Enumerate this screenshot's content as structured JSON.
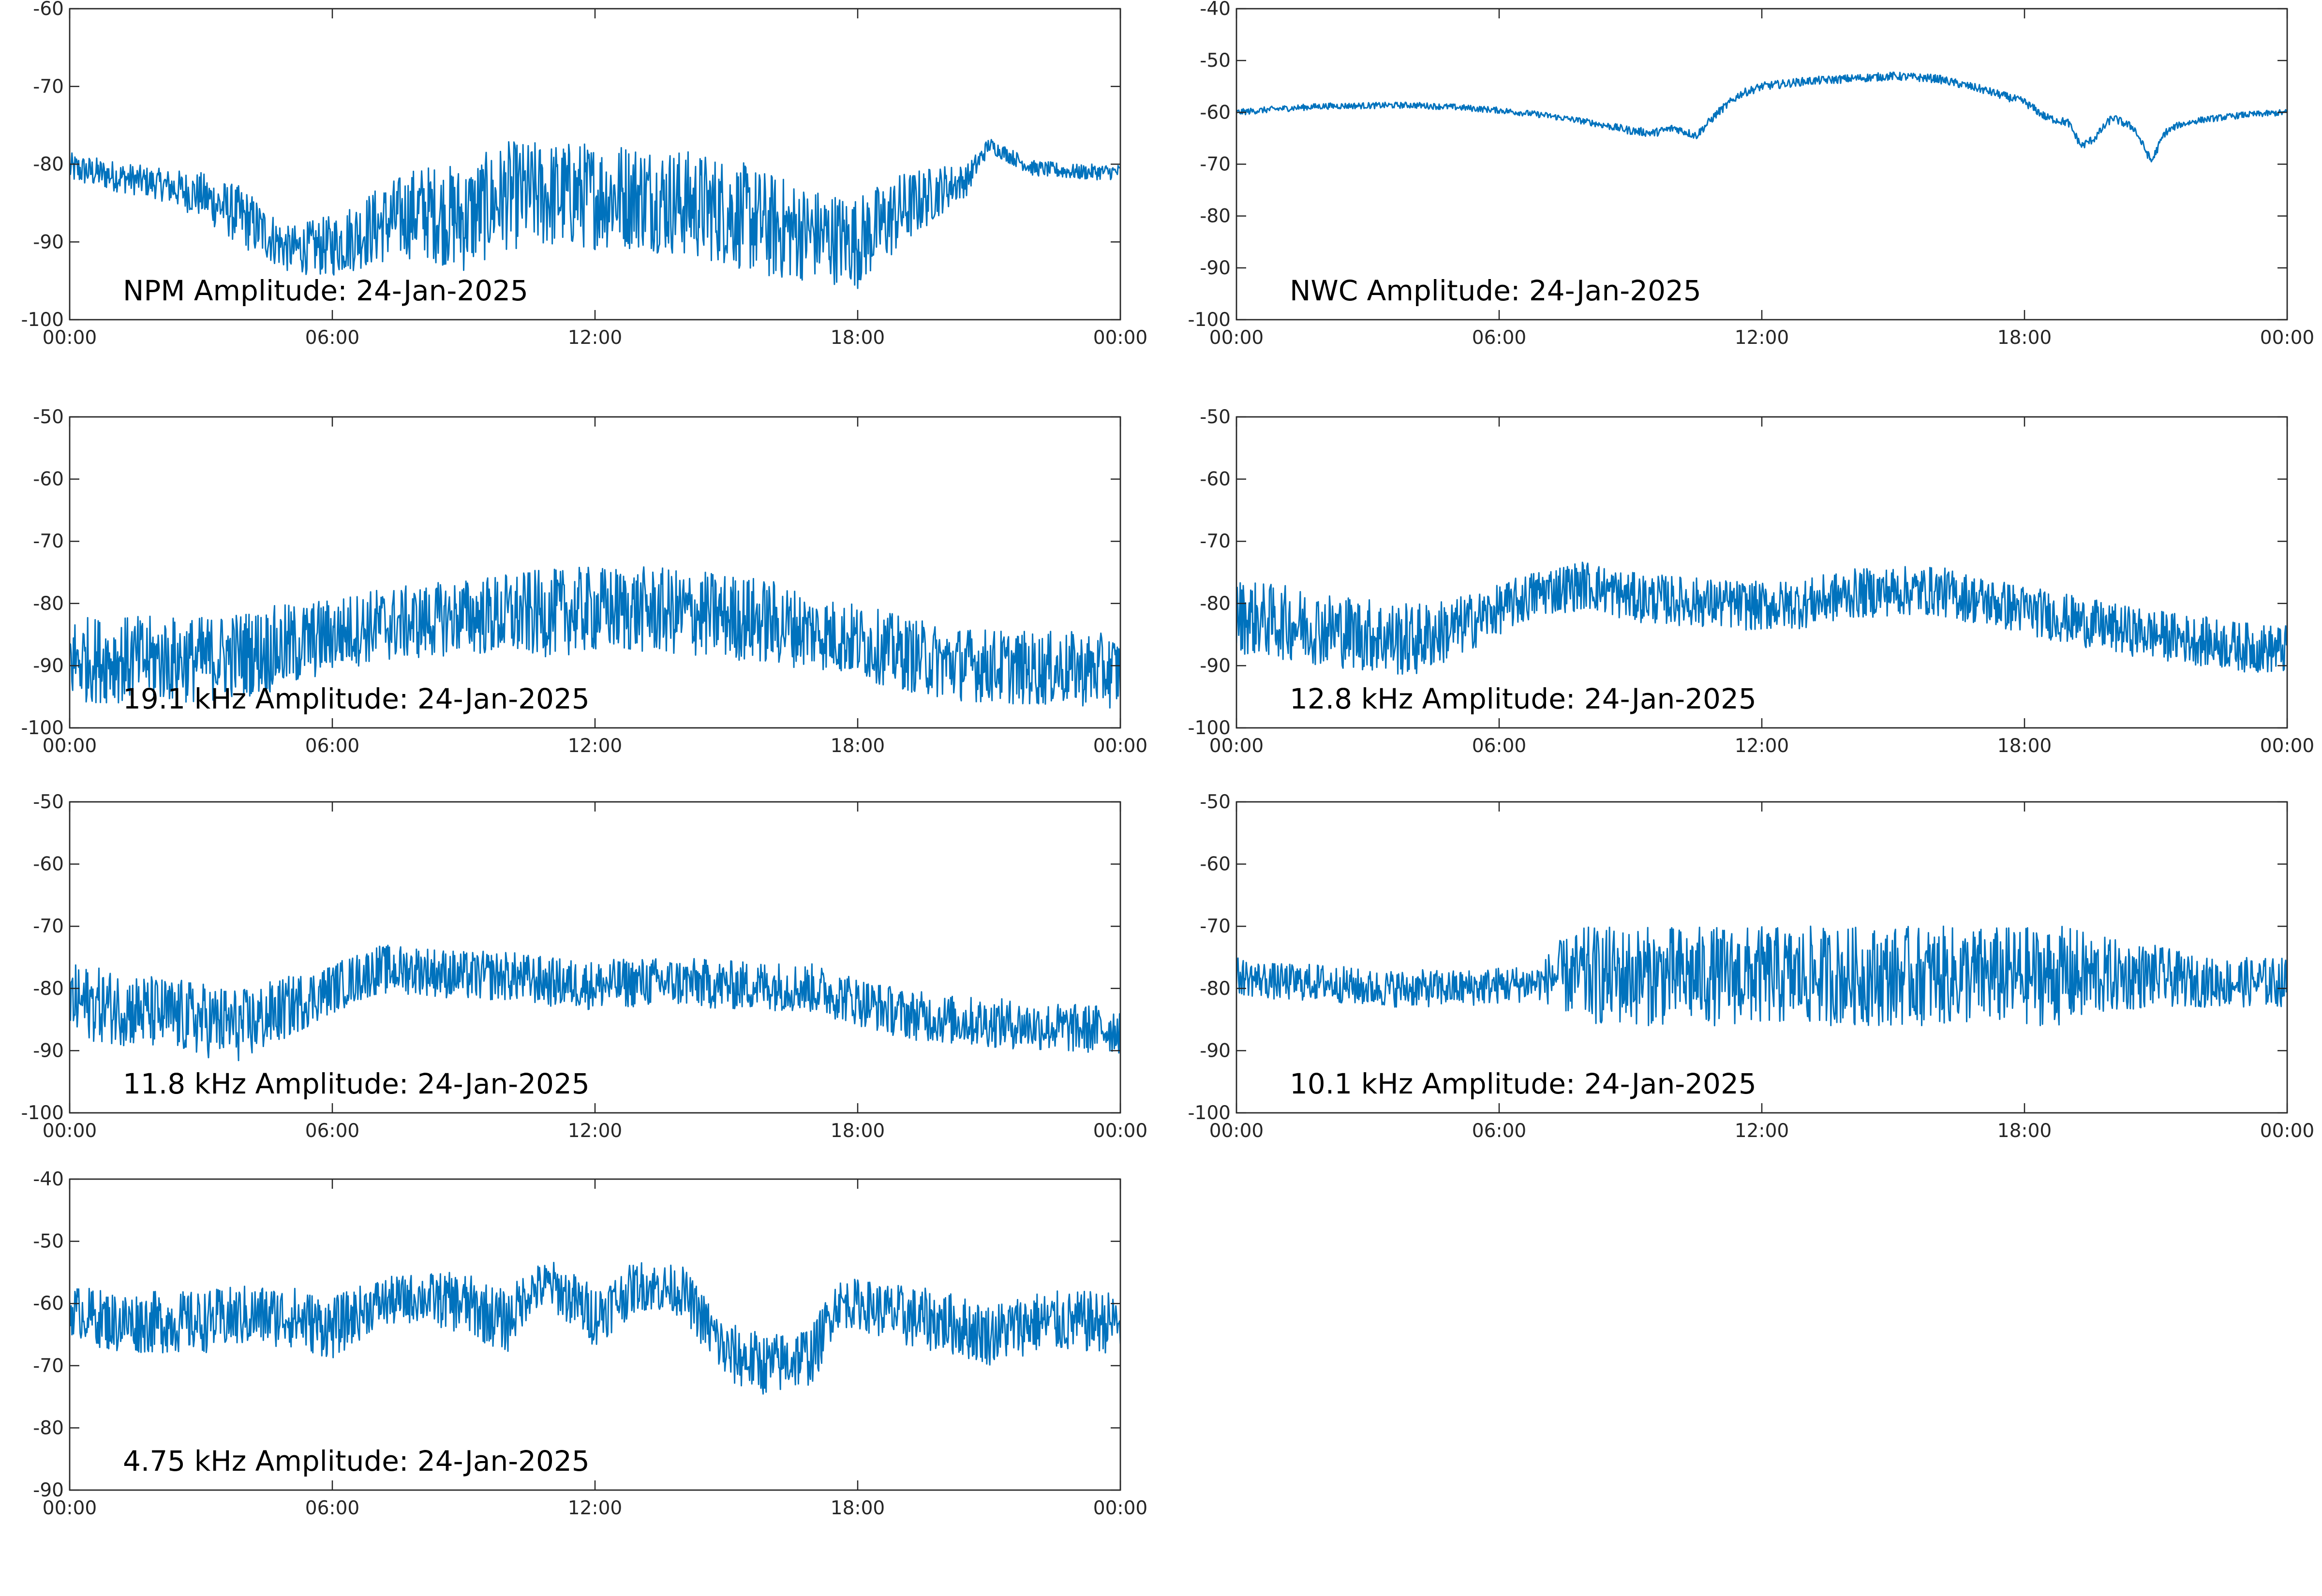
{
  "figure": {
    "date": "24-Jan-2025",
    "series_color": "#0072bd"
  },
  "chart_data": [
    {
      "type": "line",
      "title": "NPM Amplitude: 24-Jan-2025",
      "xlabel": "",
      "ylabel": "",
      "xlim": [
        0,
        24
      ],
      "ylim": [
        -100,
        -60
      ],
      "yticks": [
        -100,
        -90,
        -80,
        -70,
        -60
      ],
      "xticks": [
        0,
        6,
        12,
        18,
        24
      ],
      "xtick_labels": [
        "00:00",
        "06:00",
        "12:00",
        "18:00",
        "00:00"
      ],
      "grid": false,
      "series": [
        {
          "x": [
            0,
            1,
            2,
            3,
            4,
            5,
            6,
            7,
            8,
            9,
            10,
            11,
            12,
            13,
            14,
            15,
            16,
            17,
            18,
            19,
            20,
            20.5,
            21,
            22,
            23,
            24
          ],
          "y": [
            -80.5,
            -81.5,
            -82.5,
            -84,
            -87,
            -91,
            -90.5,
            -88,
            -86,
            -87,
            -84,
            -84,
            -84,
            -84,
            -85,
            -86,
            -88,
            -89,
            -90,
            -86,
            -83,
            -82,
            -77.5,
            -80.5,
            -81,
            -81
          ],
          "spread": [
            2,
            2,
            2,
            3,
            4,
            3,
            4,
            5,
            6,
            7,
            7,
            7,
            7,
            7,
            7,
            7,
            7,
            6,
            6,
            5,
            3,
            2,
            1,
            1,
            1,
            1
          ]
        }
      ]
    },
    {
      "type": "line",
      "title": "NWC Amplitude: 24-Jan-2025",
      "xlabel": "",
      "ylabel": "",
      "xlim": [
        0,
        24
      ],
      "ylim": [
        -100,
        -40
      ],
      "yticks": [
        -100,
        -90,
        -80,
        -70,
        -60,
        -50,
        -40
      ],
      "xticks": [
        0,
        6,
        12,
        18,
        24
      ],
      "xtick_labels": [
        "00:00",
        "06:00",
        "12:00",
        "18:00",
        "00:00"
      ],
      "grid": false,
      "series": [
        {
          "x": [
            0,
            1,
            2,
            3,
            4,
            5,
            6,
            7,
            8,
            9,
            9.5,
            10,
            10.5,
            11,
            11.5,
            12,
            13,
            14,
            15,
            16,
            17,
            18,
            18.5,
            19,
            19.3,
            19.6,
            20,
            20.5,
            20.9,
            21.2,
            21.5,
            22,
            23,
            24
          ],
          "y": [
            -60,
            -59.3,
            -58.8,
            -58.7,
            -58.6,
            -59,
            -59.6,
            -60.5,
            -61.8,
            -63.5,
            -64,
            -63,
            -64.5,
            -60,
            -56.5,
            -55,
            -54,
            -53.5,
            -53,
            -53.5,
            -55.5,
            -58,
            -61,
            -62,
            -66.5,
            -65,
            -61,
            -63,
            -69.5,
            -64,
            -62.5,
            -61.5,
            -60.5,
            -60
          ],
          "spread": [
            0.6,
            0.6,
            0.6,
            0.6,
            0.6,
            0.6,
            0.6,
            0.6,
            0.6,
            0.8,
            0.8,
            0.8,
            0.8,
            0.8,
            0.8,
            0.8,
            0.8,
            0.8,
            0.8,
            0.8,
            0.8,
            0.8,
            0.8,
            0.8,
            0.8,
            0.8,
            0.8,
            0.8,
            0.8,
            0.8,
            0.6,
            0.6,
            0.6,
            0.6
          ]
        }
      ]
    },
    {
      "type": "line",
      "title": "19.1 kHz Amplitude: 24-Jan-2025",
      "xlabel": "",
      "ylabel": "",
      "xlim": [
        0,
        24
      ],
      "ylim": [
        -100,
        -50
      ],
      "yticks": [
        -100,
        -90,
        -80,
        -70,
        -60,
        -50
      ],
      "xticks": [
        0,
        6,
        12,
        18,
        24
      ],
      "xtick_labels": [
        "00:00",
        "06:00",
        "12:00",
        "18:00",
        "00:00"
      ],
      "grid": false,
      "series": [
        {
          "x": [
            0,
            1,
            2,
            3,
            4,
            5,
            6,
            7,
            8,
            9,
            10,
            11,
            12,
            13,
            14,
            15,
            16,
            17,
            18,
            19,
            20,
            21,
            22,
            23,
            24
          ],
          "y": [
            -89,
            -89,
            -89,
            -89,
            -88,
            -87,
            -85,
            -83.5,
            -83,
            -82,
            -82,
            -81.5,
            -81,
            -81,
            -81.5,
            -82,
            -83,
            -84.5,
            -86,
            -88,
            -89.5,
            -90,
            -90.5,
            -90.5,
            -91
          ],
          "spread": [
            7,
            7,
            7,
            7,
            7,
            7,
            6,
            6,
            6,
            6,
            7,
            7,
            7,
            7,
            7,
            7,
            7,
            6,
            6,
            6,
            6,
            6,
            6,
            6,
            6
          ]
        }
      ]
    },
    {
      "type": "line",
      "title": "12.8 kHz Amplitude: 24-Jan-2025",
      "xlabel": "",
      "ylabel": "",
      "xlim": [
        0,
        24
      ],
      "ylim": [
        -100,
        -50
      ],
      "yticks": [
        -100,
        -90,
        -80,
        -70,
        -60,
        -50
      ],
      "xticks": [
        0,
        6,
        12,
        18,
        24
      ],
      "xtick_labels": [
        "00:00",
        "06:00",
        "12:00",
        "18:00",
        "00:00"
      ],
      "grid": false,
      "series": [
        {
          "x": [
            0,
            1,
            2,
            3,
            4,
            5,
            6,
            7,
            8,
            9,
            10,
            11,
            12,
            13,
            14,
            15,
            16,
            17,
            18,
            19,
            20,
            21,
            22,
            23,
            24
          ],
          "y": [
            -82,
            -83,
            -84,
            -85,
            -86,
            -84,
            -81,
            -78,
            -77,
            -79,
            -79.5,
            -80,
            -80.5,
            -80,
            -78.5,
            -78,
            -78,
            -79.5,
            -81,
            -82.5,
            -84,
            -85,
            -86,
            -87,
            -87.5
          ],
          "spread": [
            6,
            6,
            6,
            6,
            6,
            5,
            4,
            4,
            4,
            4,
            4,
            4,
            4,
            4,
            4,
            4,
            4,
            4,
            4,
            4,
            4,
            4,
            4,
            4,
            4
          ]
        }
      ]
    },
    {
      "type": "line",
      "title": "11.8 kHz Amplitude: 24-Jan-2025",
      "xlabel": "",
      "ylabel": "",
      "xlim": [
        0,
        24
      ],
      "ylim": [
        -100,
        -50
      ],
      "yticks": [
        -100,
        -90,
        -80,
        -70,
        -60,
        -50
      ],
      "xticks": [
        0,
        6,
        12,
        18,
        24
      ],
      "xtick_labels": [
        "00:00",
        "06:00",
        "12:00",
        "18:00",
        "00:00"
      ],
      "grid": false,
      "series": [
        {
          "x": [
            0,
            1,
            2,
            3,
            4,
            5,
            6,
            7,
            8,
            9,
            10,
            11,
            12,
            13,
            14,
            15,
            16,
            17,
            18,
            19,
            20,
            21,
            22,
            23,
            24
          ],
          "y": [
            -82,
            -83,
            -84,
            -85,
            -86,
            -83,
            -80,
            -77,
            -77,
            -78,
            -78,
            -79,
            -79.5,
            -79,
            -79,
            -79.5,
            -79.5,
            -80,
            -82,
            -84,
            -85,
            -85.5,
            -86,
            -86.5,
            -86.5
          ],
          "spread": [
            6,
            6,
            6,
            6,
            6,
            5,
            4,
            4,
            4,
            4,
            4,
            4,
            4,
            4,
            4,
            4,
            4,
            4,
            4,
            4,
            4,
            4,
            4,
            4,
            4
          ]
        }
      ]
    },
    {
      "type": "line",
      "title": "10.1 kHz Amplitude: 24-Jan-2025",
      "xlabel": "",
      "ylabel": "",
      "xlim": [
        0,
        24
      ],
      "ylim": [
        -100,
        -50
      ],
      "yticks": [
        -100,
        -90,
        -80,
        -70,
        -60,
        -50
      ],
      "xticks": [
        0,
        6,
        12,
        18,
        24
      ],
      "xtick_labels": [
        "00:00",
        "06:00",
        "12:00",
        "18:00",
        "00:00"
      ],
      "grid": false,
      "series": [
        {
          "x": [
            0,
            1,
            2,
            3,
            4,
            5,
            6,
            7,
            7.2,
            8,
            9,
            10,
            11,
            12,
            13,
            14,
            15,
            16,
            17,
            18,
            19,
            20,
            21,
            22,
            23,
            24
          ],
          "y": [
            -78,
            -79,
            -79,
            -80,
            -80,
            -80,
            -79.5,
            -79,
            -78,
            -78,
            -78,
            -78,
            -78,
            -78,
            -78,
            -78,
            -78,
            -78,
            -78,
            -78,
            -78,
            -78,
            -78,
            -79,
            -79,
            -79
          ],
          "spread": [
            3,
            3,
            3,
            3,
            3,
            3,
            3,
            3,
            5,
            8,
            8,
            8,
            8,
            8,
            8,
            8,
            8,
            8,
            8,
            8,
            8,
            6,
            5,
            4,
            4,
            4
          ]
        }
      ]
    },
    {
      "type": "line",
      "title": "4.75 kHz Amplitude: 24-Jan-2025",
      "xlabel": "",
      "ylabel": "",
      "xlim": [
        0,
        24
      ],
      "ylim": [
        -90,
        -40
      ],
      "yticks": [
        -90,
        -80,
        -70,
        -60,
        -50,
        -40
      ],
      "xticks": [
        0,
        6,
        12,
        18,
        24
      ],
      "xtick_labels": [
        "00:00",
        "06:00",
        "12:00",
        "18:00",
        "00:00"
      ],
      "grid": false,
      "series": [
        {
          "x": [
            0,
            1,
            2,
            3,
            4,
            5,
            6,
            7,
            8,
            9,
            10,
            10.5,
            11,
            12,
            13,
            14,
            15,
            16,
            17,
            17.5,
            18,
            19,
            20,
            21,
            22,
            23,
            24
          ],
          "y": [
            -61,
            -63,
            -63,
            -63,
            -62,
            -62,
            -64,
            -60,
            -59,
            -60,
            -63,
            -58,
            -57,
            -62,
            -57,
            -58,
            -68,
            -70,
            -68,
            -60,
            -60,
            -62,
            -63,
            -65,
            -63,
            -63,
            -63
          ],
          "spread": [
            4,
            5,
            5,
            5,
            5,
            5,
            5,
            4,
            4,
            5,
            5,
            4,
            4,
            5,
            4,
            4,
            5,
            5,
            5,
            4,
            4,
            5,
            5,
            5,
            5,
            5,
            5
          ]
        }
      ]
    }
  ]
}
